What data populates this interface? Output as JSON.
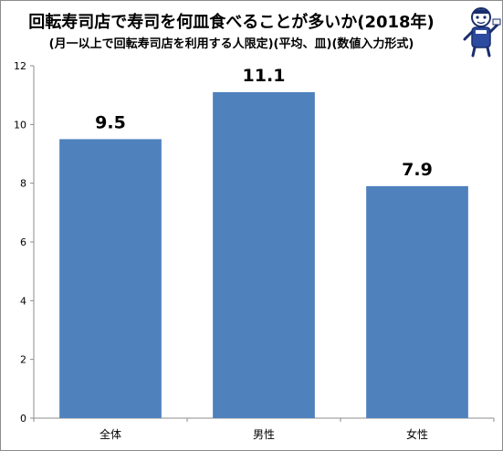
{
  "chart_data": {
    "type": "bar",
    "title": "回転寿司店で寿司を何皿食べることが多いか(2018年)",
    "subtitle": "(月一以上で回転寿司店を利用する人限定)(平均、皿)(数値入力形式)",
    "categories": [
      "全体",
      "男性",
      "女性"
    ],
    "values": [
      9.5,
      11.1,
      7.9
    ],
    "data_labels": [
      "9.5",
      "11.1",
      "7.9"
    ],
    "xlabel": "",
    "ylabel": "",
    "ylim": [
      0,
      12
    ],
    "yticks": [
      0,
      2,
      4,
      6,
      8,
      10,
      12
    ],
    "grid": false,
    "legend": "none",
    "bar_color": "#4f81bd"
  }
}
